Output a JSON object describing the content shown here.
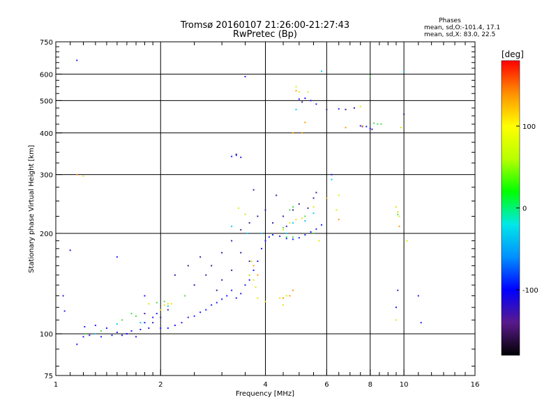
{
  "chart_data": {
    "type": "scatter",
    "title": "Tromsø 20160107 21:26:00-21:27:43",
    "subtitle": "RwPretec (Bp)",
    "xlabel": "Frequency [MHz]",
    "ylabel": "Stationary phase Virtual Height [km]",
    "x_scale": "log",
    "y_scale": "log",
    "xlim": [
      1,
      16
    ],
    "ylim": [
      75,
      750
    ],
    "x_ticks": [
      1,
      2,
      4,
      6,
      8,
      10,
      16
    ],
    "y_ticks": [
      75,
      100,
      200,
      300,
      400,
      500,
      600,
      750
    ],
    "grid": true,
    "stats": {
      "title": "Phases",
      "line1": "mean, sd,O:-101.4, 17.1",
      "line2": "mean, sd,X:  83.0, 22.5"
    },
    "colorbar": {
      "label": "[deg]",
      "min": -180,
      "max": 180,
      "ticks": [
        100,
        0,
        -100
      ],
      "colors": [
        "#000000",
        "#5a1a8c",
        "#0000ff",
        "#0090ff",
        "#00e8e8",
        "#00ff00",
        "#b8ff00",
        "#ffff00",
        "#ff9000",
        "#ff0000"
      ]
    },
    "point_colors": {
      "blue": "#1a1aff",
      "purple": "#3a1a9a",
      "cyan": "#00c8ff",
      "yellow": "#e6e600",
      "green": "#44dd44",
      "orange": "#ff9900"
    },
    "series": [
      {
        "points": [
          [
            1.05,
            130
          ],
          [
            1.06,
            117
          ],
          [
            1.1,
            178
          ],
          [
            1.15,
            93
          ],
          [
            1.2,
            98
          ],
          [
            1.21,
            105
          ],
          [
            1.25,
            99
          ],
          [
            1.3,
            106
          ],
          [
            1.35,
            98
          ],
          [
            1.4,
            104
          ],
          [
            1.45,
            99
          ],
          [
            1.5,
            101
          ],
          [
            1.55,
            99
          ],
          [
            1.6,
            100
          ],
          [
            1.65,
            102
          ],
          [
            1.7,
            98
          ],
          [
            1.75,
            103
          ],
          [
            1.8,
            108
          ],
          [
            1.85,
            104
          ],
          [
            1.9,
            112
          ],
          [
            1.95,
            115
          ],
          [
            2.0,
            104
          ],
          [
            2.1,
            104
          ],
          [
            2.2,
            106
          ],
          [
            2.3,
            108
          ],
          [
            2.4,
            112
          ],
          [
            2.5,
            113
          ],
          [
            2.6,
            116
          ],
          [
            2.7,
            118
          ],
          [
            2.8,
            122
          ],
          [
            2.9,
            124
          ],
          [
            3.0,
            127
          ],
          [
            3.1,
            130
          ],
          [
            3.2,
            135
          ],
          [
            3.3,
            128
          ],
          [
            3.4,
            132
          ],
          [
            3.5,
            140
          ],
          [
            3.6,
            145
          ],
          [
            3.7,
            155
          ],
          [
            3.8,
            165
          ],
          [
            3.9,
            180
          ],
          [
            4.0,
            190
          ],
          [
            4.1,
            195
          ],
          [
            4.2,
            198
          ],
          [
            4.4,
            196
          ],
          [
            4.6,
            193
          ],
          [
            4.8,
            192
          ],
          [
            5.0,
            194
          ],
          [
            5.2,
            198
          ],
          [
            5.4,
            202
          ],
          [
            5.6,
            206
          ],
          [
            5.8,
            212
          ],
          [
            3.2,
            340
          ],
          [
            3.3,
            343
          ],
          [
            3.4,
            338
          ],
          [
            5.0,
            505
          ],
          [
            5.2,
            508
          ],
          [
            5.4,
            500
          ],
          [
            5.6,
            488
          ],
          [
            6.5,
            472
          ],
          [
            7.5,
            420
          ],
          [
            7.8,
            418
          ],
          [
            8.0,
            412
          ],
          [
            1.15,
            660
          ],
          [
            3.5,
            590
          ],
          [
            6.2,
            300
          ],
          [
            9.5,
            120
          ],
          [
            11.0,
            130
          ],
          [
            11.2,
            108
          ],
          [
            1.5,
            170
          ],
          [
            1.6,
            100
          ],
          [
            1.8,
            130
          ]
        ]
      },
      {
        "points": [
          [
            2.2,
            150
          ],
          [
            2.4,
            160
          ],
          [
            2.6,
            170
          ],
          [
            2.8,
            160
          ],
          [
            3.0,
            175
          ],
          [
            3.2,
            190
          ],
          [
            3.4,
            205
          ],
          [
            3.6,
            215
          ],
          [
            3.8,
            225
          ],
          [
            4.0,
            235
          ],
          [
            4.2,
            215
          ],
          [
            4.5,
            225
          ],
          [
            4.8,
            235
          ],
          [
            5.0,
            245
          ],
          [
            5.3,
            238
          ],
          [
            5.6,
            265
          ],
          [
            3.0,
            145
          ],
          [
            3.2,
            155
          ],
          [
            3.4,
            175
          ],
          [
            3.6,
            165
          ],
          [
            2.9,
            135
          ],
          [
            2.5,
            140
          ],
          [
            2.7,
            150
          ],
          [
            1.8,
            115
          ],
          [
            1.9,
            108
          ],
          [
            2.0,
            112
          ],
          [
            2.1,
            118
          ],
          [
            3.3,
            345
          ],
          [
            5.1,
            495
          ],
          [
            6.0,
            470
          ],
          [
            6.8,
            470
          ],
          [
            7.2,
            475
          ],
          [
            7.6,
            418
          ],
          [
            8.1,
            410
          ],
          [
            9.6,
            135
          ],
          [
            10.0,
            455
          ],
          [
            3.7,
            270
          ],
          [
            4.3,
            260
          ],
          [
            5.5,
            255
          ],
          [
            4.6,
            210
          ]
        ]
      },
      {
        "points": [
          [
            1.5,
            107
          ],
          [
            1.3,
            100
          ],
          [
            3.55,
            200
          ],
          [
            3.9,
            200
          ],
          [
            4.6,
            200
          ],
          [
            4.8,
            215
          ],
          [
            5.2,
            218
          ],
          [
            5.5,
            230
          ],
          [
            3.2,
            210
          ],
          [
            4.9,
            470
          ],
          [
            5.8,
            612
          ],
          [
            10.0,
            610
          ],
          [
            1.75,
            108
          ],
          [
            2.1,
            121
          ],
          [
            6.2,
            290
          ],
          [
            3.6,
            150
          ]
        ]
      },
      {
        "points": [
          [
            1.2,
            297
          ],
          [
            1.85,
            123
          ],
          [
            2.0,
            118
          ],
          [
            2.05,
            122
          ],
          [
            2.1,
            123
          ],
          [
            2.15,
            123
          ],
          [
            3.6,
            150
          ],
          [
            3.7,
            145
          ],
          [
            3.75,
            138
          ],
          [
            3.8,
            128
          ],
          [
            3.65,
            165
          ],
          [
            4.0,
            125
          ],
          [
            4.4,
            128
          ],
          [
            4.5,
            122
          ],
          [
            4.6,
            130
          ],
          [
            4.5,
            205
          ],
          [
            4.7,
            215
          ],
          [
            4.9,
            220
          ],
          [
            5.1,
            222
          ],
          [
            5.0,
            530
          ],
          [
            4.9,
            550
          ],
          [
            5.3,
            530
          ],
          [
            7.5,
            480
          ],
          [
            9.5,
            240
          ],
          [
            9.6,
            232
          ],
          [
            9.7,
            225
          ],
          [
            9.5,
            110
          ],
          [
            9.8,
            415
          ],
          [
            10.2,
            190
          ],
          [
            6.4,
            235
          ],
          [
            5.5,
            240
          ],
          [
            5.7,
            190
          ],
          [
            3.5,
            228
          ],
          [
            3.35,
            238
          ],
          [
            6.5,
            260
          ],
          [
            1.4,
            75
          ]
        ]
      },
      {
        "points": [
          [
            1.55,
            110
          ],
          [
            1.65,
            115
          ],
          [
            1.7,
            113
          ],
          [
            1.95,
            124
          ],
          [
            2.05,
            125
          ],
          [
            1.22,
            100
          ],
          [
            1.35,
            102
          ],
          [
            4.5,
            208
          ],
          [
            4.8,
            195
          ],
          [
            5.2,
            225
          ],
          [
            5.5,
            200
          ],
          [
            8.2,
            428
          ],
          [
            8.4,
            425
          ],
          [
            8.6,
            425
          ],
          [
            9.6,
            228
          ],
          [
            8.0,
            590
          ],
          [
            4.7,
            235
          ],
          [
            4.8,
            240
          ],
          [
            2.35,
            130
          ],
          [
            4.6,
            195
          ]
        ]
      },
      {
        "points": [
          [
            4.7,
            130
          ],
          [
            4.8,
            135
          ],
          [
            4.5,
            128
          ],
          [
            3.8,
            150
          ],
          [
            3.7,
            160
          ],
          [
            5.1,
            400
          ],
          [
            4.8,
            400
          ],
          [
            5.2,
            430
          ],
          [
            6.8,
            415
          ],
          [
            6.0,
            255
          ],
          [
            7.6,
            420
          ],
          [
            1.15,
            300
          ],
          [
            9.7,
            210
          ],
          [
            6.5,
            220
          ],
          [
            4.9,
            535
          ]
        ]
      }
    ]
  }
}
